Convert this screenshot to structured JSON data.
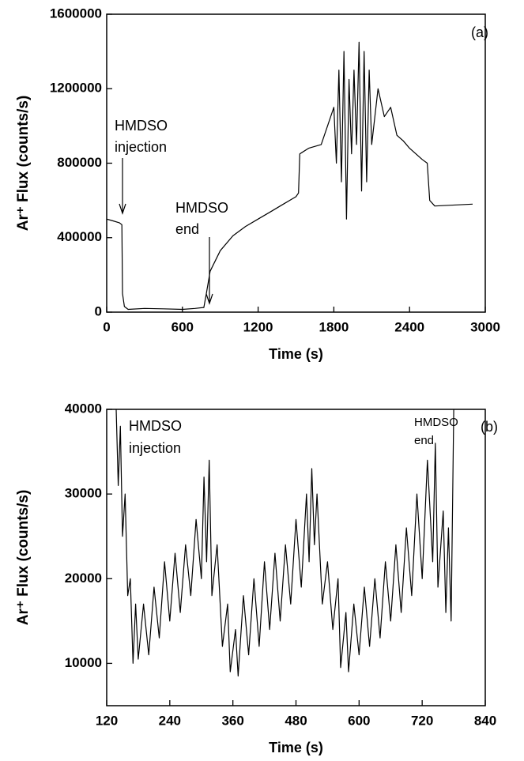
{
  "chart_data": [
    {
      "type": "line",
      "label": "(a)",
      "xlabel": "Time (s)",
      "ylabel": "Ar⁺ Flux (counts/s)",
      "color": "#000000",
      "xlim": [
        0,
        3000
      ],
      "xticks": [
        0,
        600,
        1200,
        1800,
        2400,
        3000
      ],
      "ylim": [
        0,
        1600000
      ],
      "yticks": [
        0,
        400000,
        800000,
        1200000,
        1600000
      ],
      "annotations": [
        [
          "HMDSO",
          "injection"
        ],
        [
          "HMDSO",
          "end"
        ]
      ],
      "x": [
        0,
        50,
        100,
        120,
        125,
        140,
        170,
        300,
        450,
        600,
        700,
        770,
        790,
        820,
        900,
        1000,
        1100,
        1200,
        1300,
        1400,
        1500,
        1520,
        1530,
        1600,
        1700,
        1750,
        1800,
        1820,
        1840,
        1860,
        1880,
        1900,
        1920,
        1940,
        1960,
        1980,
        2000,
        2020,
        2040,
        2060,
        2080,
        2100,
        2150,
        2200,
        2250,
        2300,
        2350,
        2400,
        2500,
        2540,
        2560,
        2600,
        2900
      ],
      "values": [
        500000,
        490000,
        480000,
        470000,
        100000,
        30000,
        15000,
        20000,
        18000,
        15000,
        20000,
        25000,
        100000,
        220000,
        330000,
        410000,
        460000,
        500000,
        540000,
        580000,
        620000,
        640000,
        850000,
        880000,
        900000,
        1000000,
        1100000,
        800000,
        1300000,
        700000,
        1400000,
        500000,
        1250000,
        850000,
        1300000,
        900000,
        1450000,
        650000,
        1400000,
        700000,
        1300000,
        900000,
        1200000,
        1050000,
        1100000,
        950000,
        920000,
        880000,
        820000,
        800000,
        600000,
        570000,
        580000
      ]
    },
    {
      "type": "line",
      "label": "(b)",
      "xlabel": "Time (s)",
      "ylabel": "Ar⁺ Flux (counts/s)",
      "color": "#000000",
      "xlim": [
        120,
        840
      ],
      "xticks": [
        120,
        240,
        360,
        480,
        600,
        720,
        840
      ],
      "ylim": [
        5000,
        40000
      ],
      "yticks": [
        10000,
        20000,
        30000,
        40000
      ],
      "annotations": [
        [
          "HMDSO",
          "injection"
        ],
        [
          "HMDSO",
          "end"
        ]
      ],
      "x": [
        138,
        142,
        146,
        150,
        155,
        160,
        165,
        170,
        175,
        180,
        190,
        200,
        210,
        220,
        230,
        240,
        250,
        260,
        270,
        280,
        290,
        300,
        305,
        310,
        315,
        320,
        330,
        340,
        350,
        355,
        365,
        370,
        380,
        390,
        400,
        410,
        420,
        430,
        440,
        450,
        460,
        470,
        480,
        490,
        500,
        505,
        510,
        515,
        520,
        530,
        540,
        550,
        560,
        565,
        575,
        580,
        590,
        600,
        610,
        620,
        630,
        640,
        650,
        660,
        670,
        680,
        690,
        700,
        710,
        720,
        730,
        740,
        745,
        750,
        760,
        765,
        770,
        775,
        780
      ],
      "values": [
        40000,
        31000,
        38000,
        25000,
        30000,
        18000,
        20000,
        10000,
        17000,
        10500,
        17000,
        11000,
        19000,
        13000,
        22000,
        15000,
        23000,
        16000,
        24000,
        18000,
        27000,
        20000,
        32000,
        22000,
        34000,
        18000,
        24000,
        12000,
        17000,
        9000,
        14000,
        8500,
        18000,
        11000,
        20000,
        12000,
        22000,
        14000,
        23000,
        15000,
        24000,
        17000,
        27000,
        19000,
        30000,
        22000,
        33000,
        24000,
        30000,
        17000,
        22000,
        14000,
        20000,
        9500,
        16000,
        9000,
        17000,
        11000,
        19000,
        12000,
        20000,
        13000,
        22000,
        15000,
        24000,
        16000,
        26000,
        18000,
        30000,
        20000,
        34000,
        22000,
        36000,
        19000,
        28000,
        16000,
        26000,
        15000,
        40000
      ]
    }
  ]
}
